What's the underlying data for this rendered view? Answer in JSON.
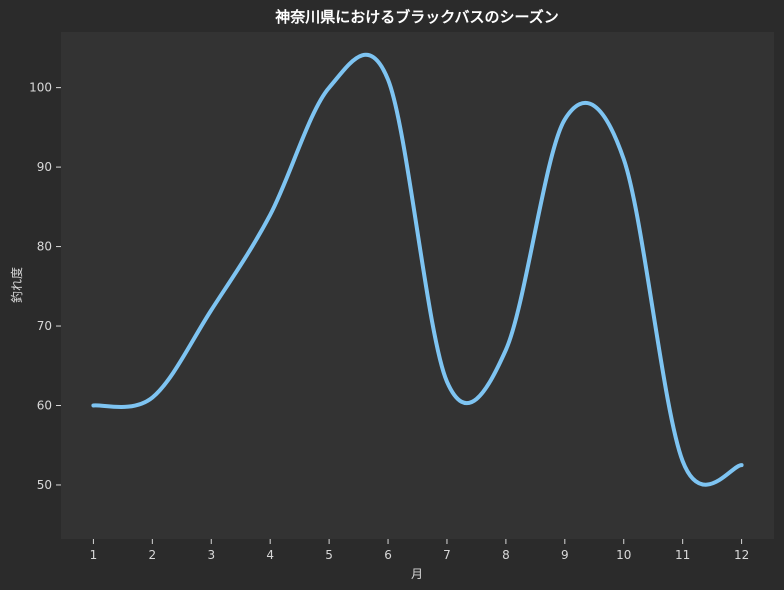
{
  "chart_data": {
    "type": "line",
    "title": "神奈川県におけるブラックバスのシーズン",
    "xlabel": "月",
    "ylabel": "釣れ度",
    "x": [
      1,
      2,
      3,
      4,
      5,
      6,
      7,
      8,
      9,
      10,
      11,
      12
    ],
    "series": [
      {
        "values": [
          60,
          61,
          72,
          84,
          100,
          101,
          63,
          67,
          96,
          91,
          53,
          52.5
        ],
        "color": "#7ec4f2"
      }
    ],
    "xlim": [
      0.45,
      12.55
    ],
    "ylim": [
      43.2,
      107
    ],
    "yticks": [
      50,
      60,
      70,
      80,
      90,
      100
    ],
    "grid": false,
    "legend": "none"
  },
  "colors": {
    "background": "#2b2b2b",
    "plot_background": "#333333",
    "line": "#7ec4f2",
    "text": "#d8d8d8",
    "title": "#ffffff"
  }
}
